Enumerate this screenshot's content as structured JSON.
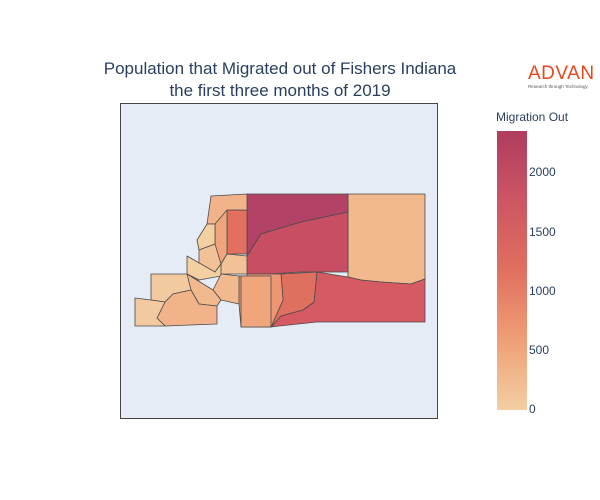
{
  "title": {
    "line1": "Population that Migrated out of Fishers Indiana",
    "line2": "the first three months of 2019"
  },
  "logo": {
    "name": "ADVAN",
    "tagline": "Research through Technology"
  },
  "colorbar": {
    "title": "Migration Out",
    "ticks": [
      "2000",
      "1500",
      "1000",
      "500",
      "0"
    ],
    "range": [
      0,
      2350
    ],
    "colors": [
      "#f3cfa2",
      "#ef9f77",
      "#e0705f",
      "#cc5662",
      "#b03c60"
    ]
  },
  "map": {
    "background": "#e5ecf6",
    "border": "#444444",
    "region_values": {
      "northwest_large": 2350,
      "north_central": 1900,
      "northeast": 300,
      "southeast": 1700,
      "south_central_east": 1500,
      "west_strip_tall": 1250,
      "center_block_a": 900,
      "center_block_b": 700
    }
  }
}
